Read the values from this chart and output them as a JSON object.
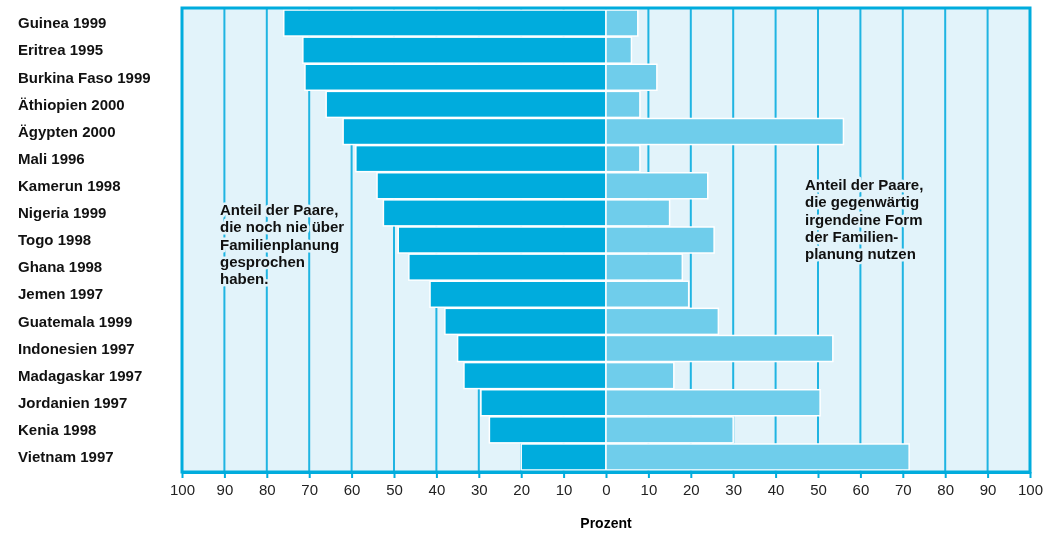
{
  "chart_data": {
    "type": "bar",
    "orientation": "horizontal",
    "stacked": true,
    "xlabel": "Prozent",
    "categories": [
      "Guinea 1999",
      "Eritrea 1995",
      "Burkina Faso 1999",
      "Äthiopien 2000",
      "Ägypten 2000",
      "Mali 1996",
      "Kamerun 1998",
      "Nigeria 1999",
      "Togo 1998",
      "Ghana 1998",
      "Jemen 1997",
      "Guatemala 1999",
      "Indonesien 1997",
      "Madagaskar 1997",
      "Jordanien 1997",
      "Kenia 1998",
      "Vietnam 1997"
    ],
    "series": [
      {
        "color": "#00acdd",
        "values": [
          -76,
          -71.5,
          -71,
          -66,
          -62,
          -59,
          -54,
          -52.5,
          -49,
          -46.5,
          -41.5,
          -38,
          -35,
          -33.5,
          -29.5,
          -27.5,
          -20
        ]
      },
      {
        "color": "#6fcdeb",
        "values": [
          7.5,
          6,
          12,
          8,
          56,
          8,
          24,
          15,
          25.5,
          18,
          19.5,
          26.5,
          53.5,
          16,
          50.5,
          30,
          71.5
        ]
      }
    ],
    "xlim": [
      -100,
      100
    ],
    "xticks": [
      {
        "value": -100,
        "label": "100"
      },
      {
        "value": -90,
        "label": "90"
      },
      {
        "value": -80,
        "label": "80"
      },
      {
        "value": -70,
        "label": "70"
      },
      {
        "value": -60,
        "label": "60"
      },
      {
        "value": -50,
        "label": "50"
      },
      {
        "value": -40,
        "label": "40"
      },
      {
        "value": -30,
        "label": "30"
      },
      {
        "value": -20,
        "label": "20"
      },
      {
        "value": -10,
        "label": "10"
      },
      0,
      10,
      20,
      30,
      40,
      50,
      60,
      70,
      80,
      90,
      100
    ],
    "grid": "x",
    "annotations": [
      "Anteil der Paare,\ndie noch nie über\nFamilienplanung\ngesprochen\nhaben.",
      "Anteil der Paare,\ndie gegenwärtig\nirgendeine Form\nder Familien-\nplanung nutzen"
    ]
  }
}
